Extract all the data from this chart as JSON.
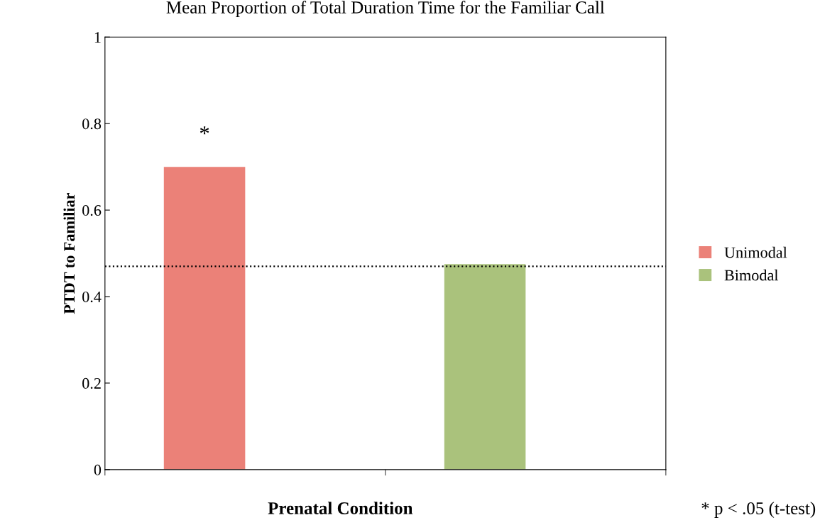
{
  "chart_data": {
    "type": "bar",
    "title": "Mean Proportion of Total Duration Time for the Familiar Call",
    "xlabel": "Prenatal Condition",
    "ylabel": "PTDT to Familiar",
    "categories": [
      null,
      null
    ],
    "series": [
      {
        "name": "Unimodal",
        "color": "#eb8178",
        "values": [
          0.7,
          null
        ]
      },
      {
        "name": "Bimodal",
        "color": "#aac27c",
        "values": [
          null,
          0.475
        ]
      }
    ],
    "ylim": [
      0,
      1
    ],
    "yticks": [
      0,
      0.2,
      0.4,
      0.6,
      0.8,
      1
    ],
    "ref_lines": [
      {
        "axis": "y",
        "value": 0.47,
        "color": "#000000",
        "line_style": "dotted"
      }
    ],
    "annotations": [
      "*",
      "* p < .05 (t-test)"
    ],
    "legend": "right",
    "grid": false
  }
}
